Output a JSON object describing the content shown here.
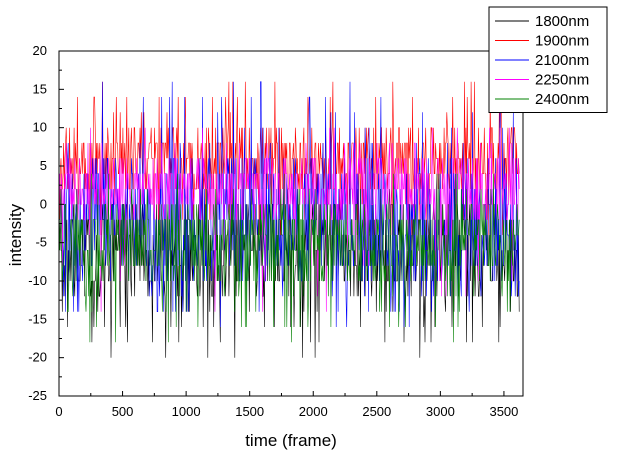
{
  "chart_data": {
    "type": "line",
    "title": "",
    "xlabel": "time (frame)",
    "ylabel": "intensity",
    "xlim": [
      0,
      3650
    ],
    "ylim": [
      -25,
      20
    ],
    "x_ticks": [
      0,
      500,
      1000,
      1500,
      2000,
      2500,
      3000,
      3500
    ],
    "y_ticks": [
      -25,
      -20,
      -15,
      -10,
      -5,
      0,
      5,
      10,
      15,
      20
    ],
    "x_tick_labels": [
      "0",
      "500",
      "1000",
      "1500",
      "2000",
      "2500",
      "3000",
      "3500"
    ],
    "y_tick_labels": [
      "-25",
      "-20",
      "-15",
      "-10",
      "-5",
      "0",
      "5",
      "10",
      "15",
      "20"
    ],
    "legend_position": "top-right",
    "frames": 3620,
    "series": [
      {
        "name": "1800nm",
        "color": "#000000",
        "typical_range": [
          -12,
          0
        ],
        "extreme_range": [
          -20,
          2
        ]
      },
      {
        "name": "1900nm",
        "color": "#ff0000",
        "typical_range": [
          2,
          10
        ],
        "extreme_range": [
          -4,
          16
        ]
      },
      {
        "name": "2100nm",
        "color": "#0000ff",
        "typical_range": [
          -10,
          6
        ],
        "extreme_range": [
          -16,
          16
        ]
      },
      {
        "name": "2250nm",
        "color": "#ff00ff",
        "typical_range": [
          -2,
          6
        ],
        "extreme_range": [
          -14,
          10
        ]
      },
      {
        "name": "2400nm",
        "color": "#008000",
        "typical_range": [
          -10,
          0
        ],
        "extreme_range": [
          -18,
          4
        ]
      }
    ]
  }
}
